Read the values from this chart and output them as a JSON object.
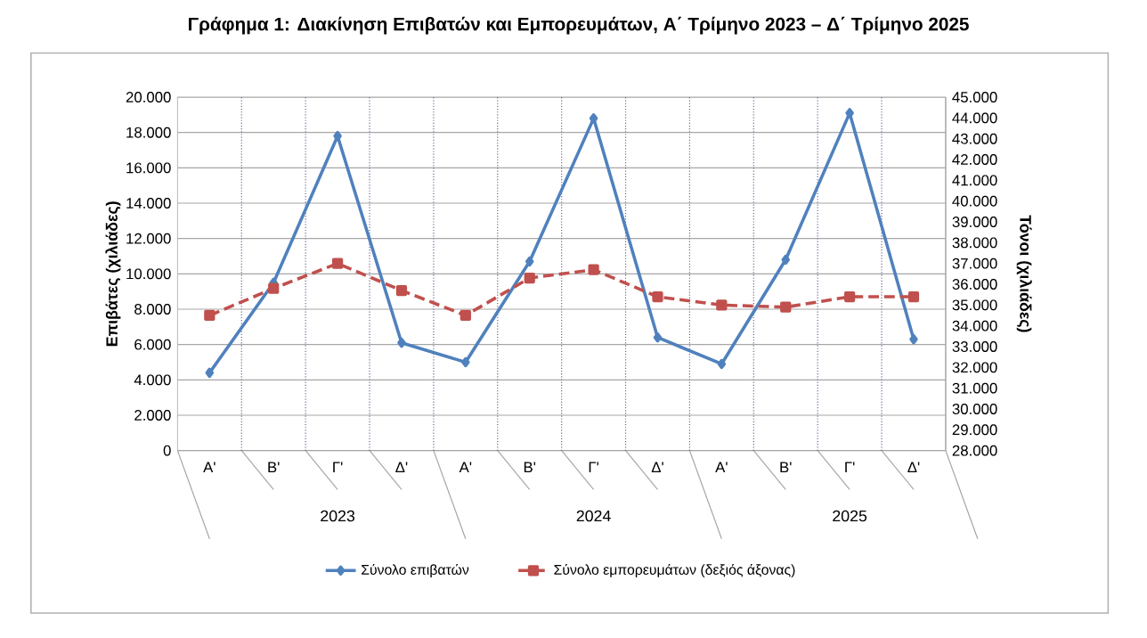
{
  "chart_data": {
    "type": "line",
    "title": "Γράφημα 1: Διακίνηση Επιβατών και Εμπορευμάτων, Α΄ Τρίμηνο 2023 – Δ΄ Τρίμηνο 2025",
    "ylabel": "Επιβάτες  (χιλιάδες)",
    "y2label": "Τόνοι  (χιλιάδες)",
    "categories": [
      "Α'",
      "Β'",
      "Γ'",
      "Δ'",
      "Α'",
      "Β'",
      "Γ'",
      "Δ'",
      "Α'",
      "Β'",
      "Γ'",
      "Δ'"
    ],
    "annotations": [
      "2023",
      "2024",
      "2025"
    ],
    "series": [
      {
        "name": "Σύνολο επιβατών",
        "color": "#4f81bd",
        "marker": "diamond",
        "line_style": "solid",
        "values": [
          4400,
          9500,
          17800,
          6100,
          5000,
          10700,
          18800,
          6400,
          4900,
          10800,
          19100,
          6300
        ]
      },
      {
        "name": "Σύνολο εμπορευμάτων (δεξιός άξονας)",
        "color": "#c0504d",
        "marker": "square",
        "line_style": "dashed",
        "axis": "y2",
        "values": [
          34500,
          35800,
          37000,
          35700,
          34500,
          36300,
          36700,
          35400,
          35000,
          34900,
          35400,
          35400
        ]
      }
    ],
    "ylim": [
      0,
      20000
    ],
    "yticks": [
      0,
      {
        "value": 2000,
        "label": "2.000"
      },
      {
        "value": 4000,
        "label": "4.000"
      },
      {
        "value": 6000,
        "label": "6.000"
      },
      {
        "value": 8000,
        "label": "8.000"
      },
      {
        "value": 10000,
        "label": "10.000"
      },
      {
        "value": 12000,
        "label": "12.000"
      },
      {
        "value": 14000,
        "label": "14.000"
      },
      {
        "value": 16000,
        "label": "16.000"
      },
      {
        "value": 18000,
        "label": "18.000"
      },
      {
        "value": 20000,
        "label": "20.000"
      }
    ],
    "y2lim": [
      28000,
      45000
    ],
    "y2ticks": [
      {
        "value": 28000,
        "label": "28.000"
      },
      {
        "value": 29000,
        "label": "29.000"
      },
      {
        "value": 30000,
        "label": "30.000"
      },
      {
        "value": 31000,
        "label": "31.000"
      },
      {
        "value": 32000,
        "label": "32.000"
      },
      {
        "value": 33000,
        "label": "33.000"
      },
      {
        "value": 34000,
        "label": "34.000"
      },
      {
        "value": 35000,
        "label": "35.000"
      },
      {
        "value": 36000,
        "label": "36.000"
      },
      {
        "value": 37000,
        "label": "37.000"
      },
      {
        "value": 38000,
        "label": "38.000"
      },
      {
        "value": 39000,
        "label": "39.000"
      },
      {
        "value": 40000,
        "label": "40.000"
      },
      {
        "value": 41000,
        "label": "41.000"
      },
      {
        "value": 42000,
        "label": "42.000"
      },
      {
        "value": 43000,
        "label": "43.000"
      },
      {
        "value": 44000,
        "label": "44.000"
      },
      {
        "value": 45000,
        "label": "45.000"
      }
    ],
    "grid": true,
    "legend": "bottom"
  }
}
